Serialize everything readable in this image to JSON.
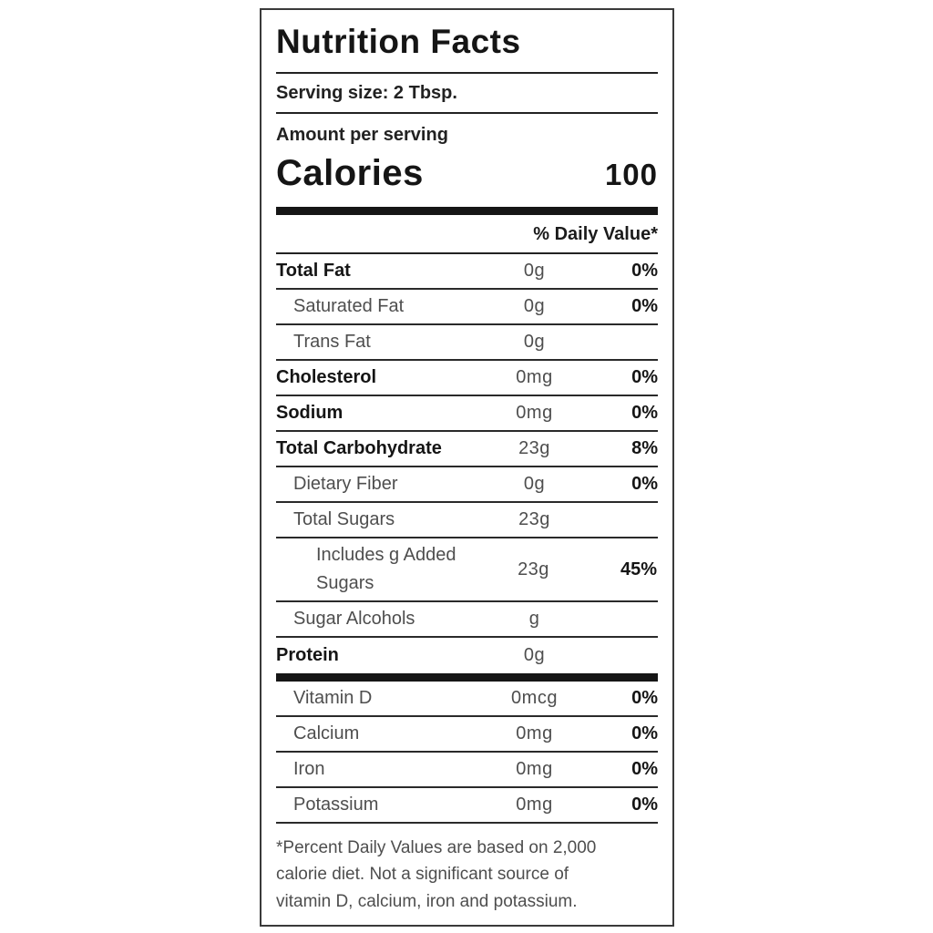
{
  "label": {
    "title": "Nutrition Facts",
    "serving_size": "Serving size: 2 Tbsp.",
    "amount_per_serving": "Amount per serving",
    "calories_label": "Calories",
    "calories_value": "100",
    "daily_value_header": "% Daily Value*",
    "nutrient_rows": [
      {
        "name": "Total Fat",
        "amount": "0g",
        "dv": "0%",
        "bold": true,
        "indent": 0
      },
      {
        "name": "Saturated Fat",
        "amount": "0g",
        "dv": "0%",
        "bold": false,
        "indent": 1
      },
      {
        "name": "Trans Fat",
        "amount": "0g",
        "dv": "",
        "bold": false,
        "indent": 1
      },
      {
        "name": "Cholesterol",
        "amount": "0mg",
        "dv": "0%",
        "bold": true,
        "indent": 0
      },
      {
        "name": "Sodium",
        "amount": "0mg",
        "dv": "0%",
        "bold": true,
        "indent": 0
      },
      {
        "name": "Total Carbohydrate",
        "amount": "23g",
        "dv": "8%",
        "bold": true,
        "indent": 0
      },
      {
        "name": "Dietary Fiber",
        "amount": "0g",
        "dv": "0%",
        "bold": false,
        "indent": 1
      },
      {
        "name": "Total Sugars",
        "amount": "23g",
        "dv": "",
        "bold": false,
        "indent": 1
      },
      {
        "name": "Includes g Added Sugars",
        "amount": "23g",
        "dv": "45%",
        "bold": false,
        "indent": 2
      },
      {
        "name": "Sugar Alcohols",
        "amount": "g",
        "dv": "",
        "bold": false,
        "indent": 1
      },
      {
        "name": "Protein",
        "amount": "0g",
        "dv": "",
        "bold": true,
        "indent": 0
      }
    ],
    "vitamin_rows": [
      {
        "name": "Vitamin D",
        "amount": "0mcg",
        "dv": "0%",
        "bold": false,
        "indent": 1
      },
      {
        "name": "Calcium",
        "amount": "0mg",
        "dv": "0%",
        "bold": false,
        "indent": 1
      },
      {
        "name": "Iron",
        "amount": "0mg",
        "dv": "0%",
        "bold": false,
        "indent": 1
      },
      {
        "name": "Potassium",
        "amount": "0mg",
        "dv": "0%",
        "bold": false,
        "indent": 1
      }
    ],
    "footnote_lines": [
      "*Percent Daily Values are based on 2,000",
      "calorie diet. Not a significant source of",
      "vitamin D, calcium, iron and potassium."
    ]
  }
}
